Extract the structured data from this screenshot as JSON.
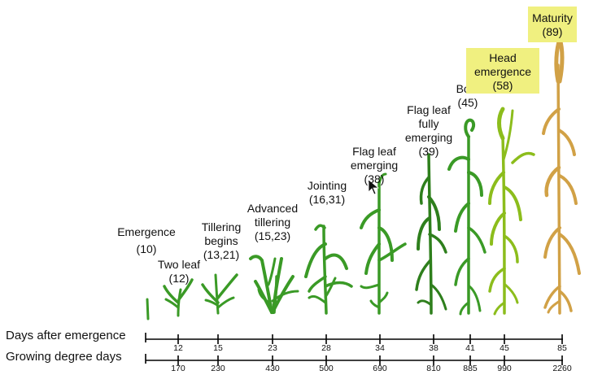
{
  "stages": [
    {
      "name": "Emergence",
      "code": "(10)"
    },
    {
      "name": "Two leaf",
      "code": "(12)"
    },
    {
      "name": "Tillering begins",
      "name_lines": [
        "Tillering",
        "begins"
      ],
      "code": "(13,21)"
    },
    {
      "name": "Advanced tillering",
      "name_lines": [
        "Advanced",
        "tillering"
      ],
      "code": "(15,23)"
    },
    {
      "name": "Jointing",
      "code": "(16,31)"
    },
    {
      "name": "Flag leaf emerging",
      "name_lines": [
        "Flag leaf",
        "emerging"
      ],
      "code": "(38)"
    },
    {
      "name": "Flag leaf fully emerging",
      "name_lines": [
        "Flag leaf",
        "fully",
        "emerging"
      ],
      "code": "(39)"
    },
    {
      "name": "Boot",
      "code": "(45)"
    },
    {
      "name": "Head emergence",
      "name_lines": [
        "Head",
        "emergence"
      ],
      "code": "(58)"
    },
    {
      "name": "Maturity",
      "code": "(89)"
    }
  ],
  "axes": {
    "days_title": "Days after emergence",
    "gdd_title": "Growing degree days",
    "days_ticks": [
      "12",
      "15",
      "23",
      "28",
      "34",
      "38",
      "41",
      "45",
      "85"
    ],
    "gdd_ticks": [
      "170",
      "230",
      "430",
      "500",
      "690",
      "810",
      "885",
      "990",
      "2260"
    ]
  },
  "colors": {
    "plant_green": "#3a9a26",
    "plant_dark_green": "#2e7f1c",
    "plant_yellow_green": "#8cbd1c",
    "plant_mature": "#d1a146",
    "highlight": "#f0f080",
    "axis": "#000000"
  },
  "icons": {
    "cursor": "mouse-pointer-icon"
  }
}
